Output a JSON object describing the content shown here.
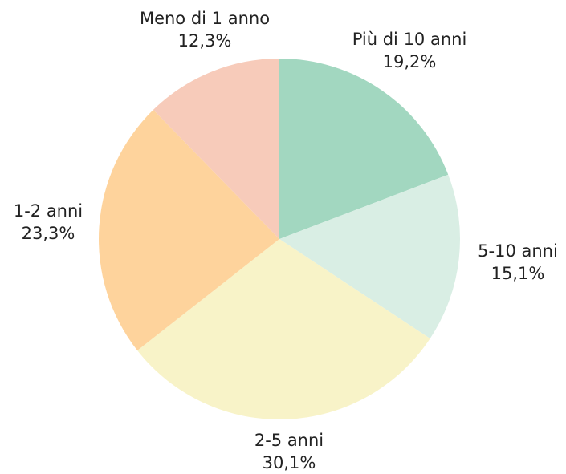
{
  "chart_data": {
    "type": "pie",
    "categories": [
      "Più di 10 anni",
      "5-10 anni",
      "2-5 anni",
      "1-2 anni",
      "Meno di 1 anno"
    ],
    "values": [
      19.2,
      15.1,
      30.1,
      23.3,
      12.3
    ],
    "value_labels": [
      "19,2%",
      "15,1%",
      "30,1%",
      "23,3%",
      "12,3%"
    ],
    "colors": [
      "#a2d7c0",
      "#d9eee4",
      "#f8f3c8",
      "#fed39c",
      "#f7cbba"
    ]
  }
}
